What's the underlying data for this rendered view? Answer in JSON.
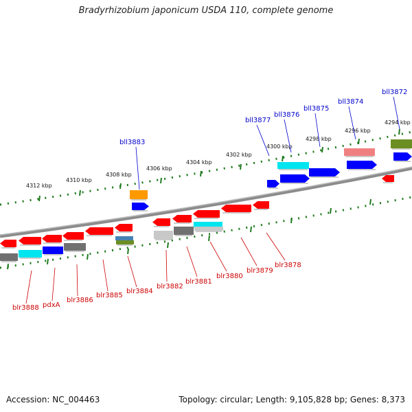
{
  "header": {
    "title": "Bradyrhizobium japonicum USDA 110, complete genome"
  },
  "footer": {
    "accession": "Accession: NC_004463",
    "topology": "Topology: circular; Length: 9,105,828 bp; Genes: 8,373"
  },
  "colors": {
    "backbone": "#8c8c8c",
    "tick": "#1e7a1e",
    "label_upper": "#0000cc",
    "label_lower": "#cc0000",
    "gene_red": "#ff0000",
    "gene_blue": "#0000ff",
    "gene_cyan": "#00e5ee",
    "gene_gray": "#707070",
    "gene_lightgray": "#c8c8c8",
    "gene_orange": "#ff9900",
    "gene_salmon": "#f08080",
    "gene_olive": "#6b8e23",
    "gene_steel": "#4682b4"
  },
  "scale": {
    "unit": "kbp",
    "labels": [
      "4312 kbp",
      "4310 kbp",
      "4308 kbp",
      "4306 kbp",
      "4304 kbp",
      "4302 kbp",
      "4300 kbp",
      "4298 kbp",
      "4296 kbp",
      "4294 kbp"
    ]
  },
  "genes_upper": [
    {
      "name": "bll3883",
      "color": "gene_orange"
    },
    {
      "name": "bll3877",
      "color": "gene_blue"
    },
    {
      "name": "bll3876",
      "color": "gene_cyan"
    },
    {
      "name": "bll3875",
      "color": "gene_blue"
    },
    {
      "name": "bll3874",
      "color": "gene_salmon"
    },
    {
      "name": "bll3872",
      "color": "gene_olive"
    }
  ],
  "genes_lower": [
    {
      "name": "blr3888"
    },
    {
      "name": "pdxA"
    },
    {
      "name": "blr3886"
    },
    {
      "name": "blr3885"
    },
    {
      "name": "blr3884"
    },
    {
      "name": "blr3882"
    },
    {
      "name": "blr3881"
    },
    {
      "name": "blr3880"
    },
    {
      "name": "blr3879"
    },
    {
      "name": "blr3878"
    }
  ]
}
